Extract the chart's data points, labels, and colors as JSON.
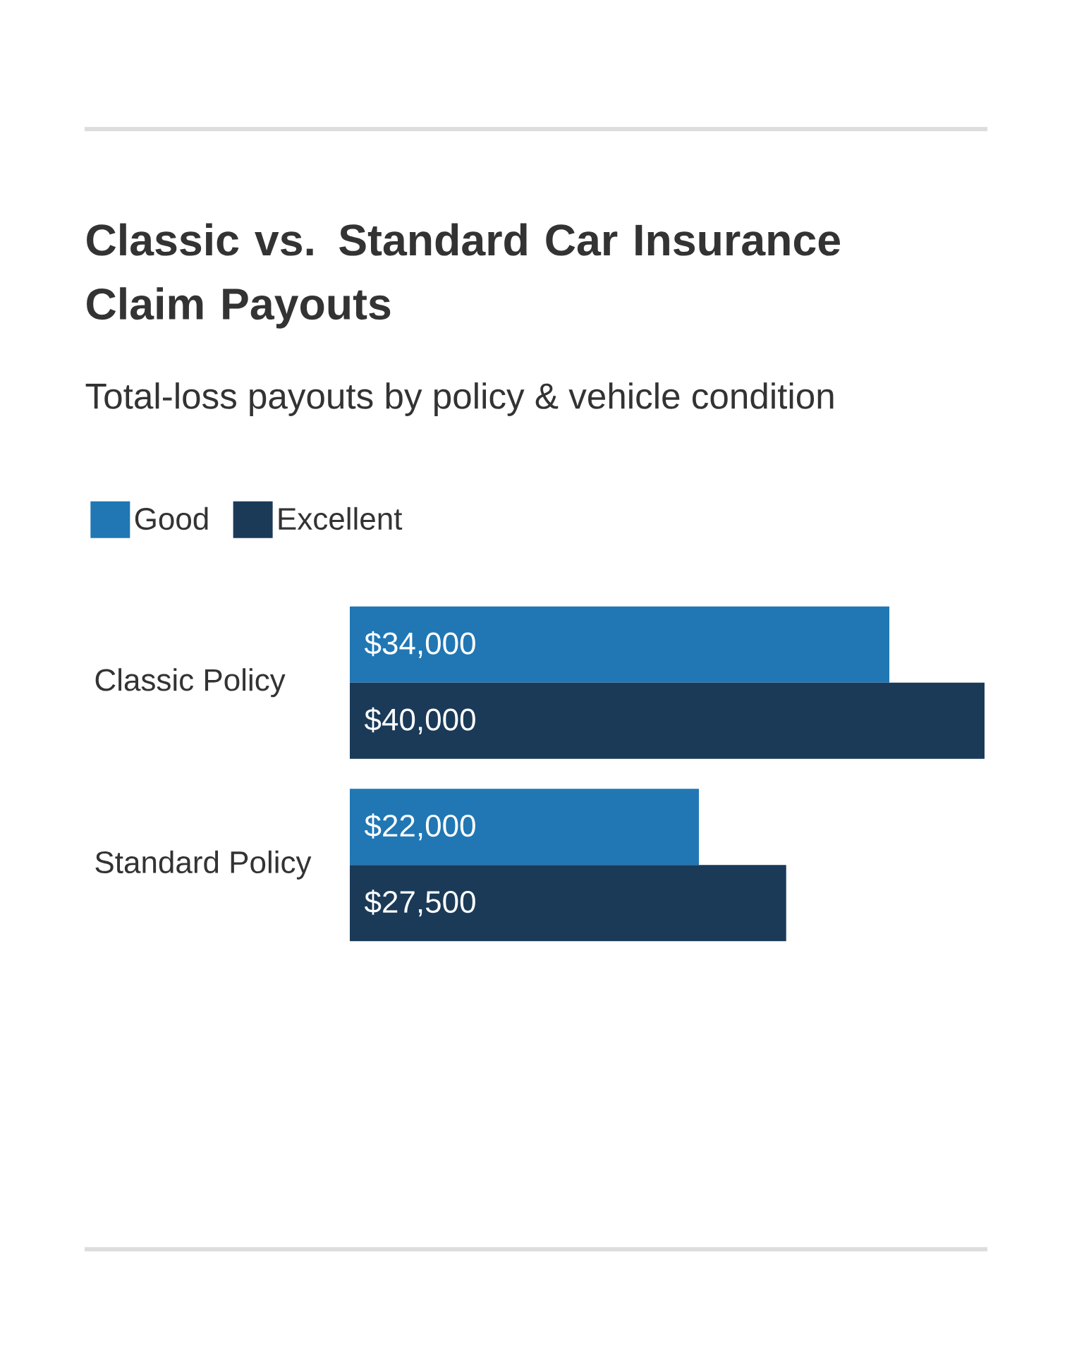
{
  "chart_data": {
    "type": "bar",
    "orientation": "horizontal",
    "title": "Classic vs. Standard Car Insurance Claim Payouts",
    "subtitle": "Total-loss payouts by policy & vehicle condition",
    "categories": [
      "Classic Policy",
      "Standard Policy"
    ],
    "series": [
      {
        "name": "Good",
        "color": "#2077b4",
        "values": [
          34000,
          22000
        ],
        "value_labels": [
          "$34,000",
          "$22,000"
        ]
      },
      {
        "name": "Excellent",
        "color": "#1a3a58",
        "values": [
          40000,
          27500
        ],
        "value_labels": [
          "$40,000",
          "$27,500"
        ]
      }
    ],
    "tick_labels": "y",
    "legend": "top left"
  }
}
